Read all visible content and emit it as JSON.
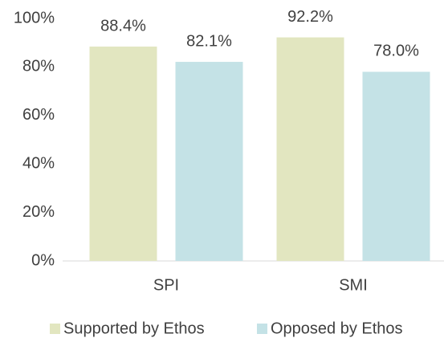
{
  "chart_data": {
    "type": "bar",
    "categories": [
      "SPI",
      "SMI"
    ],
    "series": [
      {
        "name": "Supported by Ethos",
        "color": "#e2e6c0",
        "values": [
          88.4,
          92.2
        ],
        "value_labels": [
          "88.4%",
          "92.2%"
        ]
      },
      {
        "name": "Opposed by Ethos",
        "color": "#c4e2e6",
        "values": [
          82.1,
          78.0
        ],
        "value_labels": [
          "82.1%",
          "78.0%"
        ]
      }
    ],
    "ylim": [
      0,
      100
    ],
    "yticks": [
      {
        "value": 0,
        "label": "0%"
      },
      {
        "value": 20,
        "label": "20%"
      },
      {
        "value": 40,
        "label": "40%"
      },
      {
        "value": 60,
        "label": "60%"
      },
      {
        "value": 80,
        "label": "80%"
      },
      {
        "value": 100,
        "label": "100%"
      }
    ],
    "grid": false,
    "legend": "bottom"
  }
}
